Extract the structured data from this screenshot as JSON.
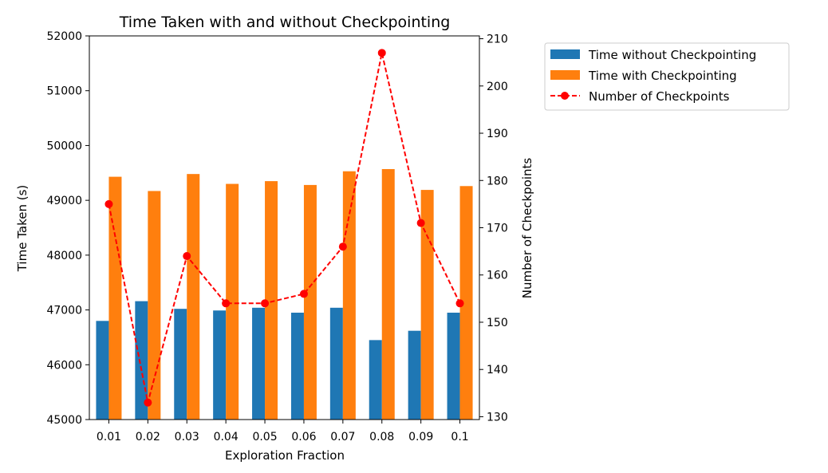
{
  "chart_data": {
    "type": "bar",
    "title": "Time Taken with and without Checkpointing",
    "xlabel": "Exploration Fraction",
    "ylabel": "Time Taken (s)",
    "y2label": "Number of Checkpoints",
    "categories": [
      "0.01",
      "0.02",
      "0.03",
      "0.04",
      "0.05",
      "0.06",
      "0.07",
      "0.08",
      "0.09",
      "0.1"
    ],
    "ylim": [
      45000,
      52000
    ],
    "y2lim": [
      129.4,
      210.6
    ],
    "yticks": [
      45000,
      46000,
      47000,
      48000,
      49000,
      50000,
      51000,
      52000
    ],
    "y2ticks": [
      130,
      140,
      150,
      160,
      170,
      180,
      190,
      200,
      210
    ],
    "series": [
      {
        "name": "Time without Checkpointing",
        "kind": "bar",
        "axis": "left",
        "color": "#1f77b4",
        "values": [
          46800,
          47160,
          47020,
          46990,
          47040,
          46950,
          47040,
          46450,
          46620,
          46950
        ]
      },
      {
        "name": "Time with Checkpointing",
        "kind": "bar",
        "axis": "left",
        "color": "#ff7f0e",
        "values": [
          49430,
          49170,
          49480,
          49300,
          49350,
          49280,
          49530,
          49570,
          49190,
          49260
        ]
      },
      {
        "name": "Number of Checkpoints",
        "kind": "line",
        "axis": "right",
        "color": "#ff0000",
        "linestyle": "dashed",
        "marker": "circle",
        "values": [
          175,
          133,
          164,
          154,
          154,
          156,
          166,
          207,
          171,
          154
        ]
      }
    ],
    "legend": {
      "placement": "outside-right"
    },
    "grid": false
  }
}
